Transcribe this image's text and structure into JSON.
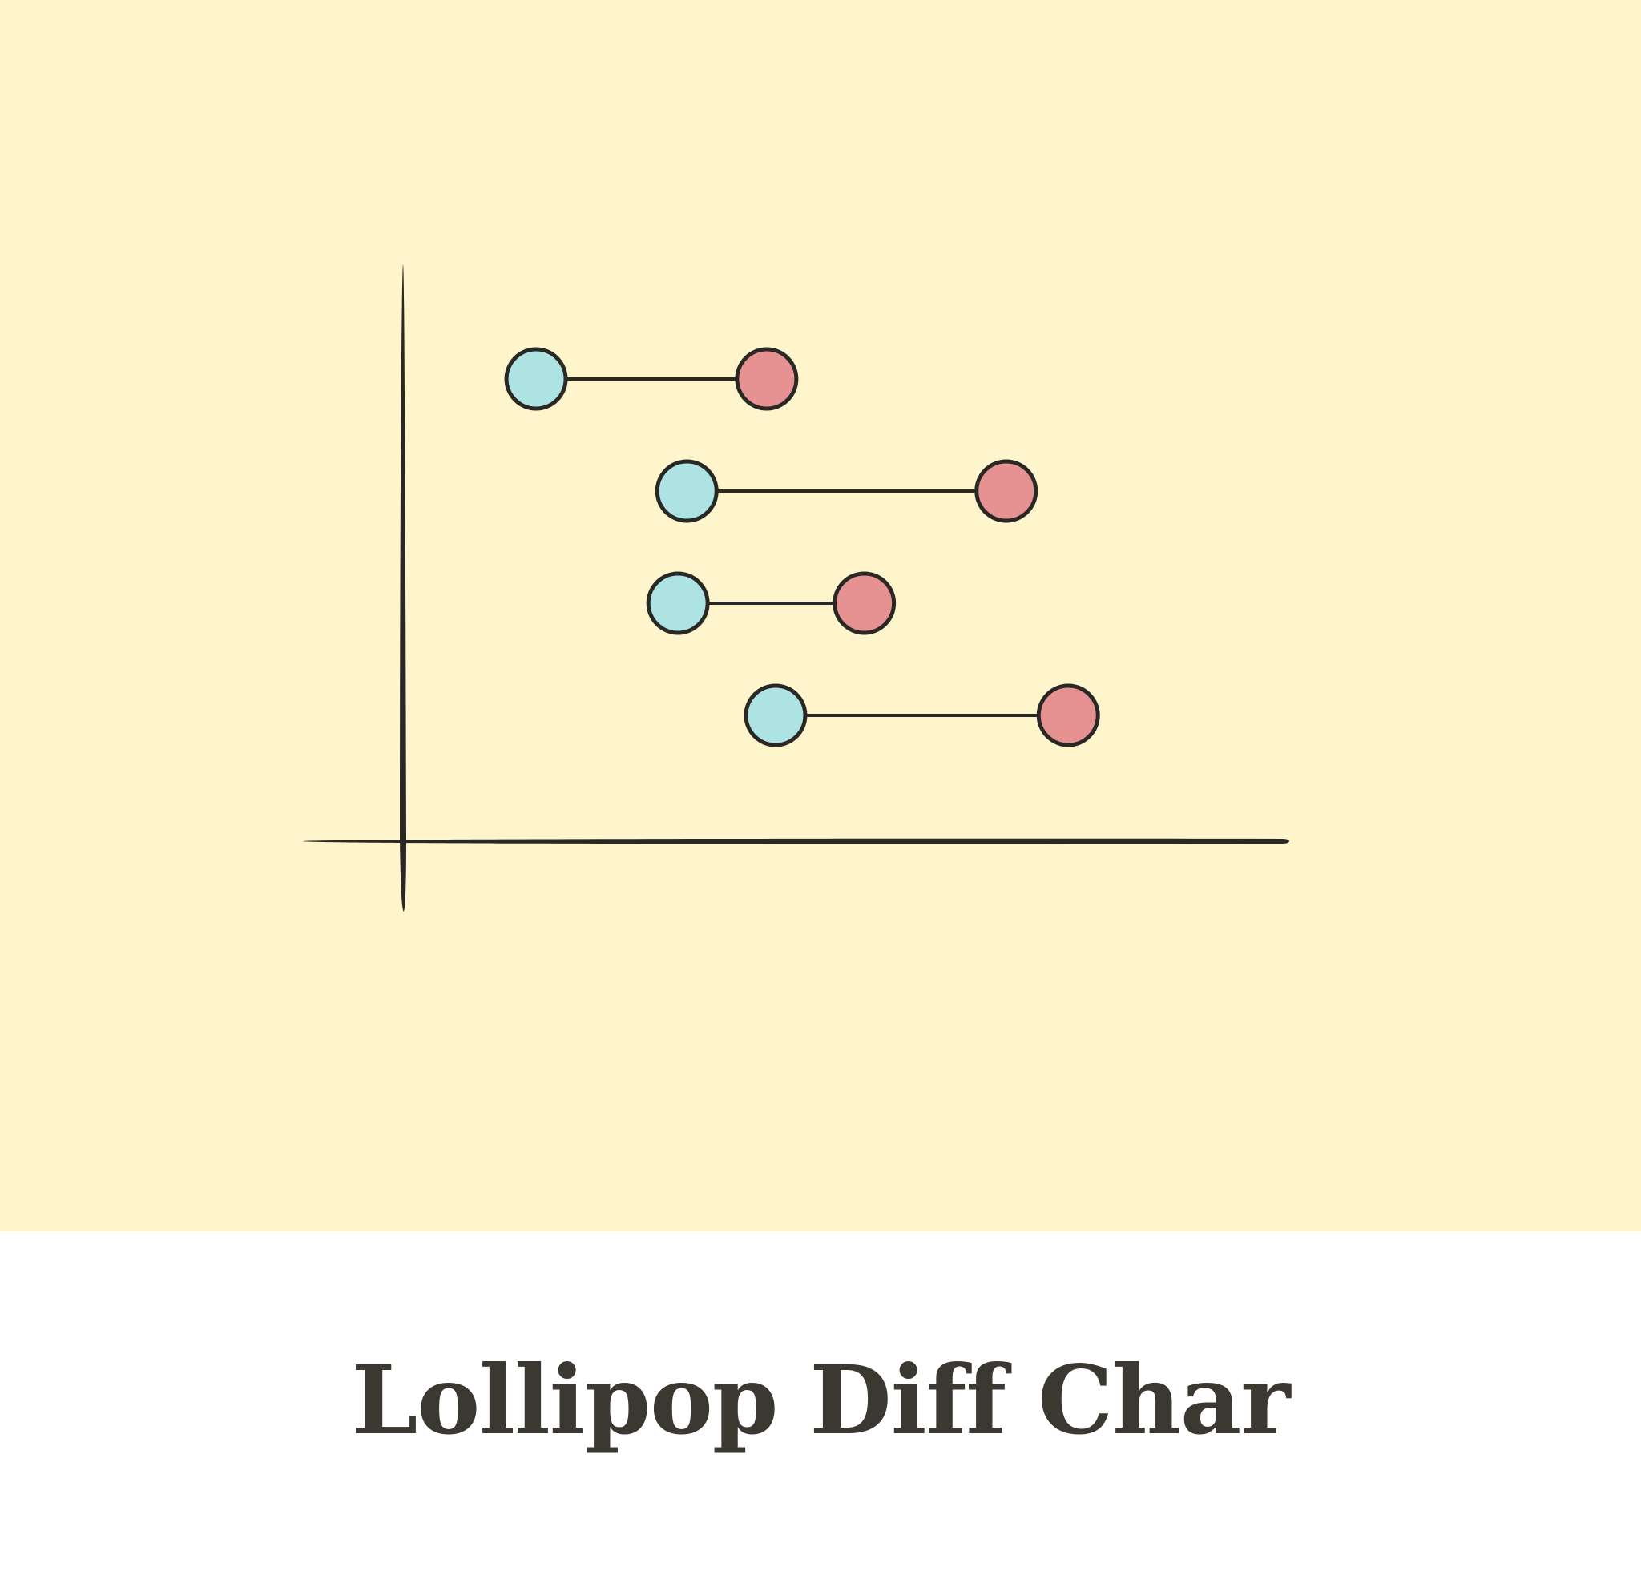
{
  "caption": {
    "title": "Lollipop Diff Char"
  },
  "colors": {
    "background": "#fef5cc",
    "ink": "#2a2824",
    "start_dot": "#ade3e3",
    "end_dot": "#e79292"
  },
  "chart_data": {
    "type": "dumbbell",
    "title": "",
    "xlabel": "",
    "ylabel": "",
    "grid": false,
    "xlim": [
      0,
      100
    ],
    "rows": [
      {
        "start": 15,
        "end": 41
      },
      {
        "start": 32,
        "end": 68
      },
      {
        "start": 31,
        "end": 52
      },
      {
        "start": 42,
        "end": 75
      }
    ]
  }
}
